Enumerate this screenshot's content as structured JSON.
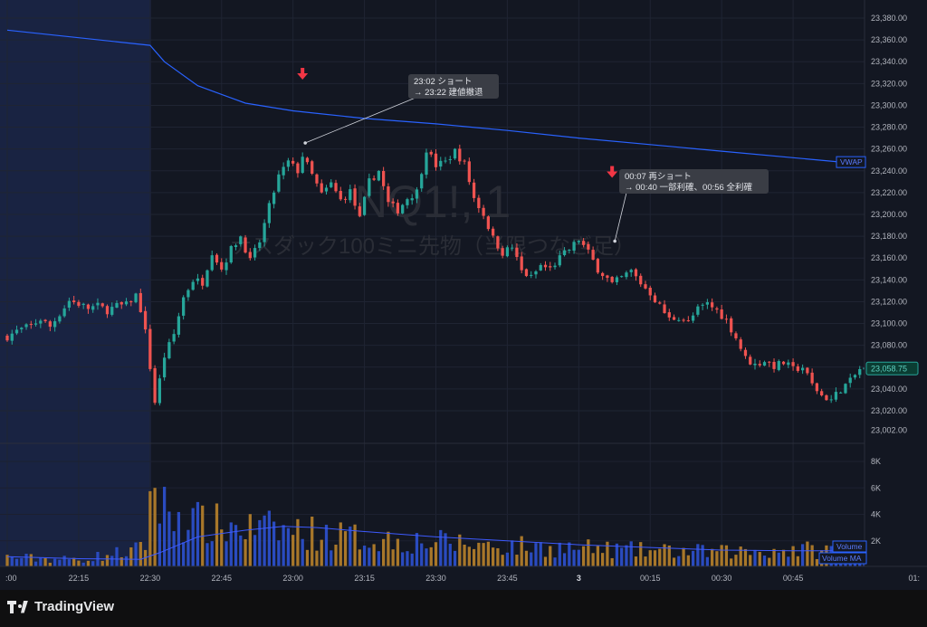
{
  "chart_data": {
    "type": "candlestick",
    "watermark": {
      "symbol": "NQ1!, 1",
      "name": "ナスダック100ミニ先物（当限つなぎ足）"
    },
    "price_axis": {
      "ticks": [
        "23,380.00",
        "23,360.00",
        "23,340.00",
        "23,320.00",
        "23,300.00",
        "23,280.00",
        "23,260.00",
        "23,240.00",
        "23,220.00",
        "23,200.00",
        "23,180.00",
        "23,160.00",
        "23,140.00",
        "23,120.00",
        "23,100.00",
        "23,080.00",
        "23,060.00",
        "23,040.00",
        "23,020.00",
        "23,002.00"
      ],
      "range": [
        23000,
        23385
      ],
      "last_price": "23,058.75"
    },
    "volume_axis": {
      "ticks": [
        "8K",
        "6K",
        "4K",
        "2K"
      ],
      "range": [
        0,
        8800
      ]
    },
    "time_axis": {
      "ticks": [
        ":00",
        "22:15",
        "22:30",
        "22:45",
        "23:00",
        "23:15",
        "23:30",
        "23:45",
        "3",
        "00:15",
        "00:30",
        "00:45",
        "01:"
      ],
      "start": "22:00",
      "end": "01:00"
    },
    "vwap": {
      "label": "VWAP",
      "points": [
        [
          "22:00",
          23369
        ],
        [
          "22:30",
          23355
        ],
        [
          "22:33",
          23340
        ],
        [
          "22:40",
          23318
        ],
        [
          "22:50",
          23302
        ],
        [
          "23:00",
          23295
        ],
        [
          "23:15",
          23288
        ],
        [
          "23:30",
          23283
        ],
        [
          "23:45",
          23277
        ],
        [
          "00:00",
          23270
        ],
        [
          "00:15",
          23264
        ],
        [
          "00:30",
          23258
        ],
        [
          "00:45",
          23252
        ],
        [
          "00:55",
          23248
        ]
      ]
    },
    "annotations": [
      {
        "time": "23:02",
        "price": 23268,
        "arrow": "down",
        "line1": "23:02 ショート",
        "line2": "→ 23:22 建値撤退"
      },
      {
        "time": "00:07",
        "price": 23178,
        "arrow": "down",
        "line1": "00:07 再ショート",
        "line2": "→ 00:40 一部利確、00:56 全利確"
      }
    ],
    "series_labels": {
      "volume": "Volume",
      "volume_ma": "Volume MA"
    },
    "price_path": [
      [
        "22:00",
        23088
      ],
      [
        "22:02",
        23093
      ],
      [
        "22:05",
        23098
      ],
      [
        "22:07",
        23104
      ],
      [
        "22:09",
        23097
      ],
      [
        "22:11",
        23109
      ],
      [
        "22:13",
        23121
      ],
      [
        "22:15",
        23118
      ],
      [
        "22:17",
        23114
      ],
      [
        "22:19",
        23116
      ],
      [
        "22:21",
        23112
      ],
      [
        "22:23",
        23116
      ],
      [
        "22:25",
        23117
      ],
      [
        "22:27",
        23126
      ],
      [
        "22:28",
        23113
      ],
      [
        "22:29",
        23092
      ],
      [
        "22:30",
        23060
      ],
      [
        "22:31",
        23028
      ],
      [
        "22:32",
        23048
      ],
      [
        "22:33",
        23070
      ],
      [
        "22:35",
        23090
      ],
      [
        "22:37",
        23124
      ],
      [
        "22:39",
        23140
      ],
      [
        "22:41",
        23138
      ],
      [
        "22:43",
        23166
      ],
      [
        "22:45",
        23150
      ],
      [
        "22:47",
        23168
      ],
      [
        "22:49",
        23180
      ],
      [
        "22:51",
        23157
      ],
      [
        "22:53",
        23175
      ],
      [
        "22:55",
        23207
      ],
      [
        "22:57",
        23235
      ],
      [
        "22:59",
        23248
      ],
      [
        "23:01",
        23240
      ],
      [
        "23:02",
        23254
      ],
      [
        "23:04",
        23236
      ],
      [
        "23:06",
        23218
      ],
      [
        "23:08",
        23228
      ],
      [
        "23:10",
        23213
      ],
      [
        "23:12",
        23221
      ],
      [
        "23:14",
        23196
      ],
      [
        "23:16",
        23230
      ],
      [
        "23:18",
        23240
      ],
      [
        "23:20",
        23210
      ],
      [
        "23:22",
        23204
      ],
      [
        "23:24",
        23215
      ],
      [
        "23:26",
        23221
      ],
      [
        "23:28",
        23260
      ],
      [
        "23:30",
        23245
      ],
      [
        "23:32",
        23248
      ],
      [
        "23:34",
        23258
      ],
      [
        "23:36",
        23246
      ],
      [
        "23:38",
        23215
      ],
      [
        "23:40",
        23200
      ],
      [
        "23:42",
        23178
      ],
      [
        "23:44",
        23165
      ],
      [
        "23:46",
        23170
      ],
      [
        "23:48",
        23148
      ],
      [
        "23:50",
        23142
      ],
      [
        "23:52",
        23153
      ],
      [
        "23:54",
        23150
      ],
      [
        "23:56",
        23160
      ],
      [
        "23:58",
        23168
      ],
      [
        "00:00",
        23177
      ],
      [
        "00:02",
        23165
      ],
      [
        "00:04",
        23150
      ],
      [
        "00:06",
        23141
      ],
      [
        "00:07",
        23136
      ],
      [
        "00:09",
        23142
      ],
      [
        "00:11",
        23148
      ],
      [
        "00:13",
        23137
      ],
      [
        "00:15",
        23128
      ],
      [
        "00:17",
        23116
      ],
      [
        "00:19",
        23104
      ],
      [
        "00:21",
        23106
      ],
      [
        "00:23",
        23101
      ],
      [
        "00:25",
        23113
      ],
      [
        "00:27",
        23118
      ],
      [
        "00:29",
        23112
      ],
      [
        "00:31",
        23103
      ],
      [
        "00:33",
        23087
      ],
      [
        "00:35",
        23068
      ],
      [
        "00:37",
        23062
      ],
      [
        "00:39",
        23066
      ],
      [
        "00:41",
        23061
      ],
      [
        "00:43",
        23064
      ],
      [
        "00:45",
        23058
      ],
      [
        "00:47",
        23060
      ],
      [
        "00:49",
        23044
      ],
      [
        "00:51",
        23034
      ],
      [
        "00:53",
        23030
      ],
      [
        "00:55",
        23040
      ],
      [
        "00:57",
        23047
      ],
      [
        "00:59",
        23058
      ]
    ],
    "volume_levels": [
      [
        "22:00",
        800
      ],
      [
        "22:15",
        600
      ],
      [
        "22:29",
        1500
      ],
      [
        "22:30",
        8400
      ],
      [
        "22:31",
        5600
      ],
      [
        "22:33",
        4600
      ],
      [
        "22:40",
        3500
      ],
      [
        "22:45",
        3300
      ],
      [
        "22:50",
        3100
      ],
      [
        "23:00",
        2900
      ],
      [
        "23:15",
        2300
      ],
      [
        "23:30",
        2000
      ],
      [
        "23:45",
        1700
      ],
      [
        "00:00",
        1500
      ],
      [
        "00:15",
        1300
      ],
      [
        "00:30",
        1200
      ],
      [
        "00:45",
        1400
      ],
      [
        "01:00",
        1300
      ]
    ],
    "volume_ma": [
      [
        "22:00",
        800
      ],
      [
        "22:15",
        650
      ],
      [
        "22:28",
        600
      ],
      [
        "22:32",
        1100
      ],
      [
        "22:40",
        2300
      ],
      [
        "22:50",
        2800
      ],
      [
        "22:58",
        3100
      ],
      [
        "23:05",
        3000
      ],
      [
        "23:15",
        2700
      ],
      [
        "23:30",
        2300
      ],
      [
        "23:45",
        2000
      ],
      [
        "00:00",
        1700
      ],
      [
        "00:15",
        1500
      ],
      [
        "00:30",
        1300
      ],
      [
        "00:45",
        1250
      ],
      [
        "00:55",
        1250
      ]
    ],
    "colors": {
      "up": "#26a69a",
      "down": "#ef5350",
      "vwap": "#2962ff",
      "volume_up": "#2a4bbf",
      "volume_down": "#a8772a",
      "shade": "#1b2546",
      "bg": "#131722"
    }
  },
  "footer": {
    "brand": "TradingView"
  }
}
